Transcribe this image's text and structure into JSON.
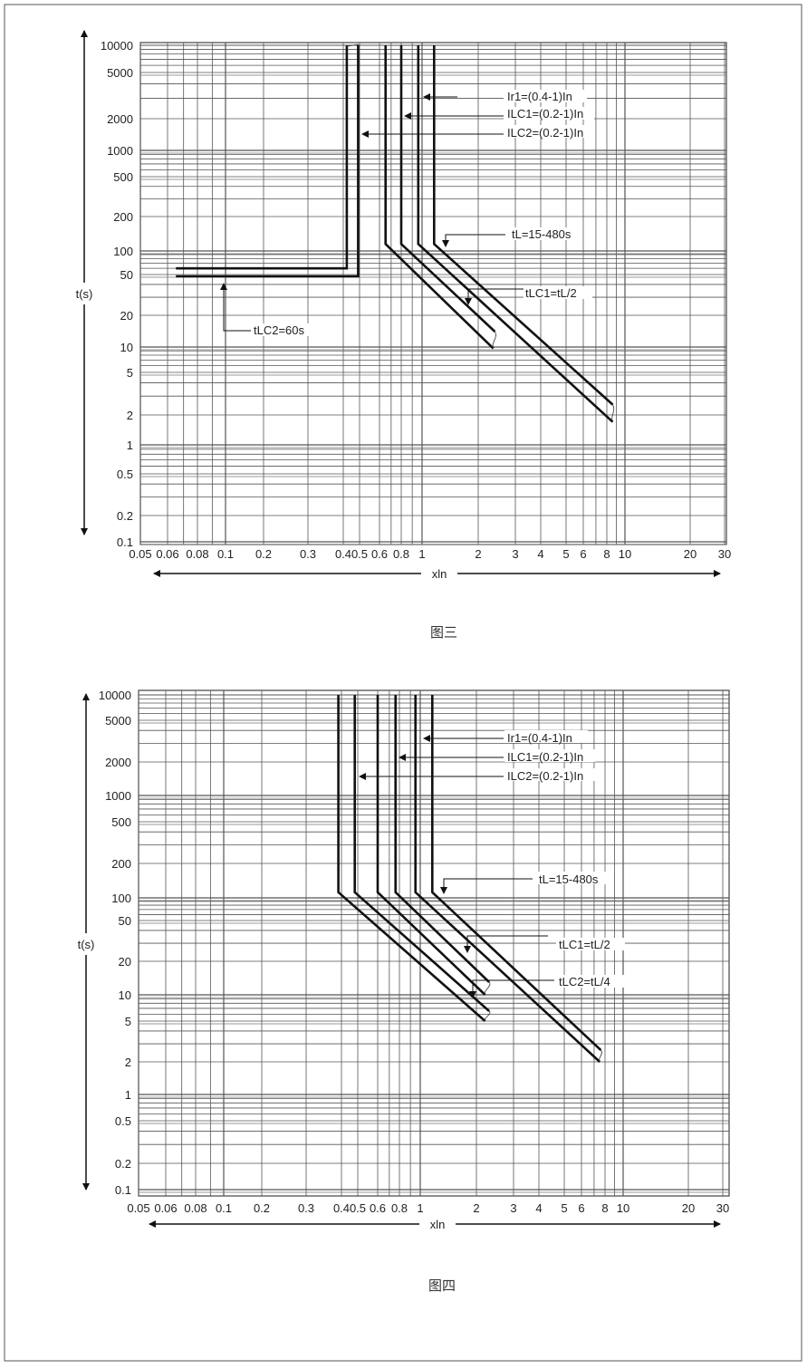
{
  "chart_data": [
    {
      "type": "line",
      "caption": "图三",
      "xlabel": "xln",
      "ylabel": "t(s)",
      "x_scale": "log",
      "y_scale": "log",
      "xlim": [
        0.05,
        30
      ],
      "ylim": [
        0.1,
        10000
      ],
      "grid": true,
      "x_ticks": [
        "0.05",
        "0.06",
        "0.08",
        "0.1",
        "0.2",
        "0.3",
        "0.4",
        "0.5",
        "0.6",
        "0.8",
        "1",
        "2",
        "3",
        "4",
        "5",
        "6",
        "8",
        "10",
        "20",
        "30"
      ],
      "y_ticks": [
        "10000",
        "5000",
        "2000",
        "1000",
        "500",
        "200",
        "100",
        "50",
        "20",
        "10",
        "5",
        "2",
        "1",
        "0.5",
        "0.2",
        "0.1"
      ],
      "series": [
        {
          "points": [
            [
              0.065,
              60
            ],
            [
              0.42,
              60
            ],
            [
              0.42,
              10000
            ]
          ]
        },
        {
          "points": [
            [
              0.065,
              48
            ],
            [
              0.49,
              48
            ],
            [
              0.49,
              10000
            ]
          ]
        },
        {
          "points": [
            [
              0.65,
              10000
            ],
            [
              0.65,
              115
            ],
            [
              2.36,
              9.6
            ]
          ]
        },
        {
          "points": [
            [
              0.8,
              10000
            ],
            [
              0.8,
              115
            ],
            [
              2.4,
              14
            ]
          ]
        },
        {
          "points": [
            [
              0.96,
              10000
            ],
            [
              0.96,
              115
            ],
            [
              8.6,
              1.7
            ]
          ]
        },
        {
          "points": [
            [
              1.16,
              10000
            ],
            [
              1.16,
              115
            ],
            [
              8.6,
              2.5
            ]
          ]
        }
      ],
      "annotations": [
        "Ir1=(0.4-1)In",
        "ILC1=(0.2-1)In",
        "ILC2=(0.2-1)In",
        "tL=15-480s",
        "tLC1=tL/2",
        "tLC2=60s"
      ]
    },
    {
      "type": "line",
      "caption": "图四",
      "xlabel": "xln",
      "ylabel": "t(s)",
      "x_scale": "log",
      "y_scale": "log",
      "xlim": [
        0.05,
        30
      ],
      "ylim": [
        0.1,
        10000
      ],
      "grid": true,
      "x_ticks": [
        "0.05",
        "0.06",
        "0.08",
        "0.1",
        "0.2",
        "0.3",
        "0.4",
        "0.5",
        "0.6",
        "0.8",
        "1",
        "2",
        "3",
        "4",
        "5",
        "6",
        "8",
        "10",
        "20",
        "30"
      ],
      "y_ticks": [
        "10000",
        "5000",
        "2000",
        "1000",
        "500",
        "200",
        "100",
        "50",
        "20",
        "10",
        "5",
        "2",
        "1",
        "0.5",
        "0.2",
        "0.1"
      ],
      "series": [
        {
          "points": [
            [
              0.39,
              10000
            ],
            [
              0.39,
              112
            ],
            [
              2.2,
              5
            ]
          ]
        },
        {
          "points": [
            [
              0.48,
              10000
            ],
            [
              0.48,
              112
            ],
            [
              2.3,
              6.5
            ]
          ]
        },
        {
          "points": [
            [
              0.6,
              10000
            ],
            [
              0.6,
              112
            ],
            [
              2.2,
              10
            ]
          ]
        },
        {
          "points": [
            [
              0.76,
              10000
            ],
            [
              0.76,
              112
            ],
            [
              2.3,
              13
            ]
          ]
        },
        {
          "points": [
            [
              0.95,
              10000
            ],
            [
              0.95,
              112
            ],
            [
              7.5,
              2
            ]
          ]
        },
        {
          "points": [
            [
              1.16,
              10000
            ],
            [
              1.16,
              112
            ],
            [
              7.6,
              2.6
            ]
          ]
        }
      ],
      "annotations": [
        "Ir1=(0.4-1)In",
        "ILC1=(0.2-1)In",
        "ILC2=(0.2-1)In",
        "tL=15-480s",
        "tLC1=tL/2",
        "tLC2=tL/4"
      ]
    }
  ]
}
